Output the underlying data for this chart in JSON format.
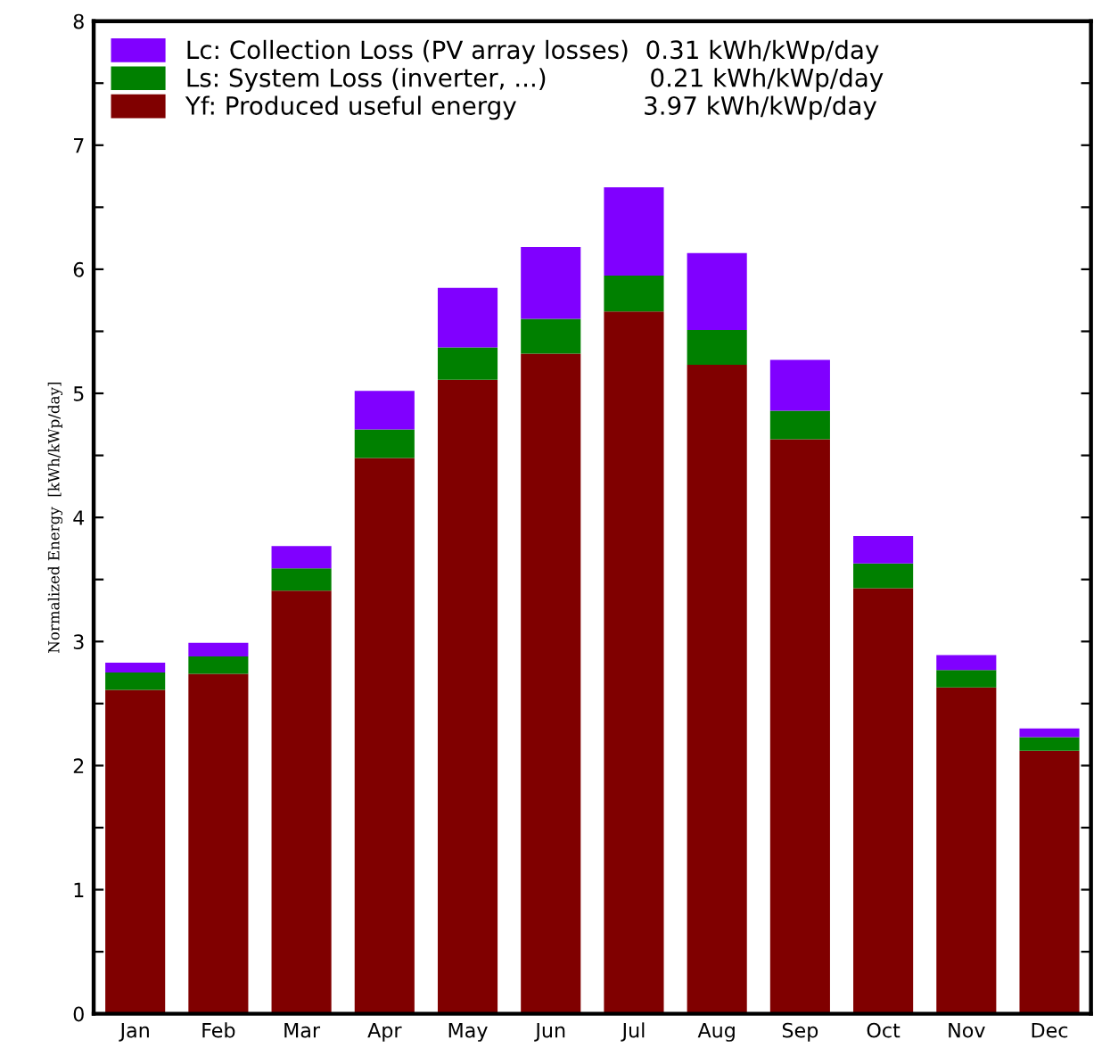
{
  "chart_data": {
    "type": "bar",
    "stacked": true,
    "ylabel": "Normalized Energy  [kWh/kWp/day]",
    "categories": [
      "Jan",
      "Feb",
      "Mar",
      "Apr",
      "May",
      "Jun",
      "Jul",
      "Aug",
      "Sep",
      "Oct",
      "Nov",
      "Dec"
    ],
    "series": [
      {
        "name": "Yf: Produced useful energy                3.97 kWh/kWp/day",
        "color": "#800000",
        "values": [
          2.61,
          2.74,
          3.41,
          4.48,
          5.11,
          5.32,
          5.66,
          5.23,
          4.63,
          3.43,
          2.63,
          2.12
        ]
      },
      {
        "name": "Ls: System Loss (inverter, ...)             0.21 kWh/kWp/day",
        "color": "#008000",
        "values": [
          0.14,
          0.14,
          0.18,
          0.23,
          0.26,
          0.28,
          0.29,
          0.28,
          0.23,
          0.2,
          0.14,
          0.11
        ]
      },
      {
        "name": "Lc: Collection Loss (PV array losses)  0.31 kWh/kWp/day",
        "color": "#8000ff",
        "values": [
          0.08,
          0.11,
          0.18,
          0.31,
          0.48,
          0.58,
          0.71,
          0.62,
          0.41,
          0.22,
          0.12,
          0.07
        ]
      }
    ],
    "ylim": [
      0,
      8
    ],
    "yticks": [
      0,
      {
        "value": 0.5,
        "label": null
      },
      1,
      {
        "value": 1.5,
        "label": null
      },
      2,
      {
        "value": 2.5,
        "label": null
      },
      3,
      {
        "value": 3.5,
        "label": null
      },
      4,
      {
        "value": 4.5,
        "label": null
      },
      5,
      {
        "value": 5.5,
        "label": null
      },
      6,
      {
        "value": 6.5,
        "label": null
      },
      7,
      {
        "value": 7.5,
        "label": null
      },
      8
    ],
    "legend": "top left"
  }
}
